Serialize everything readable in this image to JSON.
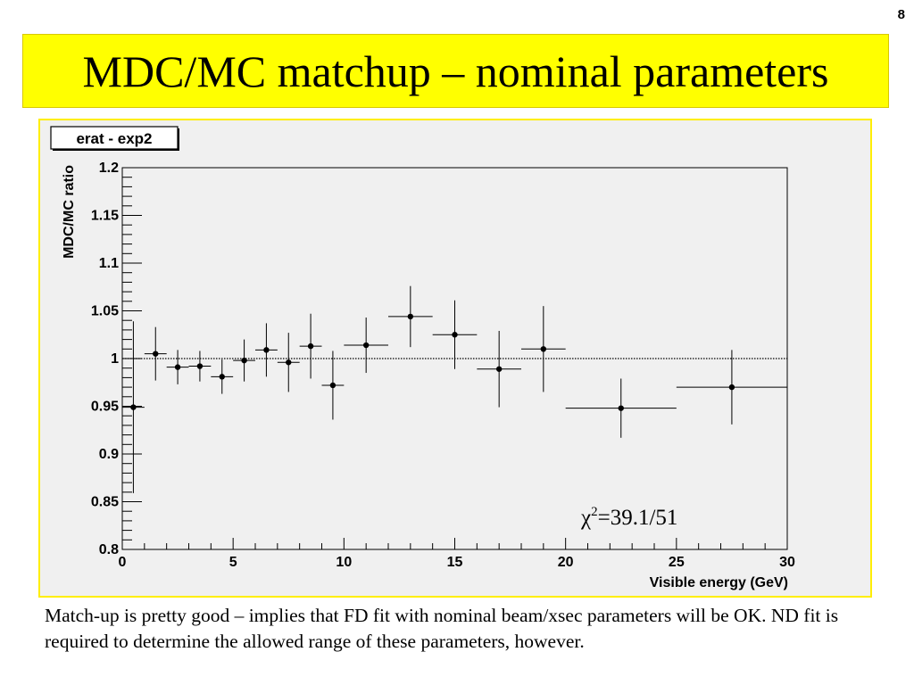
{
  "slide": {
    "number": "8",
    "title": "MDC/MC matchup – nominal parameters",
    "caption": "Match-up is pretty good – implies that FD fit with nominal beam/xsec parameters will be OK. ND fit is required to determine the allowed range of these parameters, however."
  },
  "chart_data": {
    "type": "scatter",
    "title": "erat - exp2",
    "xlabel": "Visible energy (GeV)",
    "ylabel": "MDC/MC ratio",
    "xlim": [
      0,
      30
    ],
    "ylim": [
      0.8,
      1.2
    ],
    "x_ticks": [
      "0",
      "5",
      "10",
      "15",
      "20",
      "25",
      "30"
    ],
    "y_ticks": [
      "0.8",
      "0.85",
      "0.9",
      "0.95",
      "1",
      "1.05",
      "1.1",
      "1.15",
      "1.2"
    ],
    "reference_line": 1.0,
    "annotation": {
      "prefix": "χ",
      "superscript": "2",
      "value": "=39.1/51"
    },
    "points": [
      {
        "x": 0.5,
        "y": 0.949,
        "xerr": 0.5,
        "yerr": 0.09
      },
      {
        "x": 1.5,
        "y": 1.005,
        "xerr": 0.5,
        "yerr": 0.028
      },
      {
        "x": 2.5,
        "y": 0.991,
        "xerr": 0.5,
        "yerr": 0.018
      },
      {
        "x": 3.5,
        "y": 0.992,
        "xerr": 0.5,
        "yerr": 0.016
      },
      {
        "x": 4.5,
        "y": 0.981,
        "xerr": 0.5,
        "yerr": 0.018
      },
      {
        "x": 5.5,
        "y": 0.998,
        "xerr": 0.5,
        "yerr": 0.022
      },
      {
        "x": 6.5,
        "y": 1.009,
        "xerr": 0.5,
        "yerr": 0.028
      },
      {
        "x": 7.5,
        "y": 0.996,
        "xerr": 0.5,
        "yerr": 0.031
      },
      {
        "x": 8.5,
        "y": 1.013,
        "xerr": 0.5,
        "yerr": 0.034
      },
      {
        "x": 9.5,
        "y": 0.972,
        "xerr": 0.5,
        "yerr": 0.036
      },
      {
        "x": 11.0,
        "y": 1.014,
        "xerr": 1.0,
        "yerr": 0.029
      },
      {
        "x": 13.0,
        "y": 1.044,
        "xerr": 1.0,
        "yerr": 0.032
      },
      {
        "x": 15.0,
        "y": 1.025,
        "xerr": 1.0,
        "yerr": 0.036
      },
      {
        "x": 17.0,
        "y": 0.989,
        "xerr": 1.0,
        "yerr": 0.04
      },
      {
        "x": 19.0,
        "y": 1.01,
        "xerr": 1.0,
        "yerr": 0.045
      },
      {
        "x": 22.5,
        "y": 0.948,
        "xerr": 2.5,
        "yerr": 0.031
      },
      {
        "x": 27.5,
        "y": 0.97,
        "xerr": 2.5,
        "yerr": 0.039
      }
    ],
    "grid": false,
    "legend": "none",
    "colors": {
      "frame_background": "#f0f0f0",
      "title_box": "#ffff00",
      "plot_border": "#ffee00",
      "markers": "#000000"
    }
  }
}
